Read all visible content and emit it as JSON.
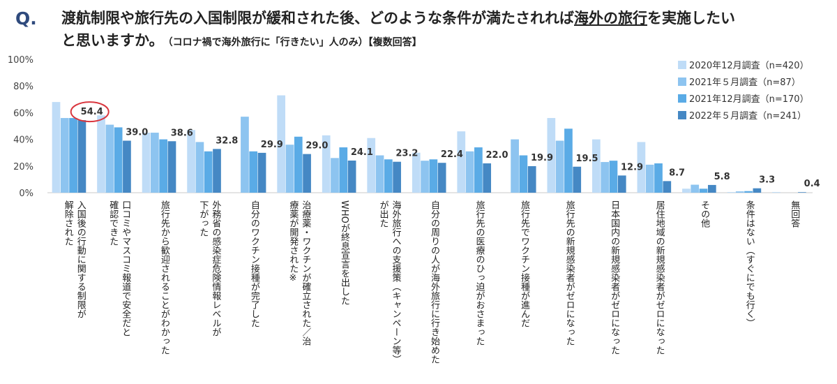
{
  "header": {
    "q_mark": "Q.",
    "title_a": "渡航制限や旅行先の入国制限が緩和された後、どのような条件が満たされれば",
    "title_u": "海外の旅行",
    "title_b": "を実施したい",
    "title_c": "と思いますか。",
    "note": "（コロナ禍で海外旅行に「行きたい」人のみ）【複数回答】"
  },
  "chart_data": {
    "type": "bar",
    "ylim": [
      0,
      100
    ],
    "yticks": [
      "0%",
      "20%",
      "40%",
      "60%",
      "80%",
      "100%"
    ],
    "grid": false,
    "legend_position": "top-right",
    "categories": [
      [
        "入国後の行動に関する制限が",
        "解除された"
      ],
      [
        "口コミやマスコミ報道で安全だと",
        "確認できた"
      ],
      [
        "旅行先から歓迎されることがわかった"
      ],
      [
        "外務省の感染症危険情報レベルが",
        "下がった"
      ],
      [
        "自分のワクチン接種が完了した"
      ],
      [
        "治療薬・ワクチンが確立された／治",
        "療薬が開発された※"
      ],
      [
        "WHOが終息宣言を出した"
      ],
      [
        "海外旅行への支援策（キャンペーン等）",
        "が出た"
      ],
      [
        "自分の周りの人が海外旅行に行き始めた"
      ],
      [
        "旅行先の医療のひっ迫がおさまった"
      ],
      [
        "旅行先でワクチン接種が進んだ"
      ],
      [
        "旅行先の新規感染者がゼロになった"
      ],
      [
        "日本国内の新規感染者がゼロになった"
      ],
      [
        "居住地域の新規感染者がゼロになった"
      ],
      [
        "その他"
      ],
      [
        "条件はない（すぐにでも行く）"
      ],
      [
        "無回答"
      ]
    ],
    "series": [
      {
        "name": "2020年12月調査（n=420）",
        "color": "#bfdcf7",
        "values": [
          68,
          58,
          45,
          47,
          0,
          73,
          43,
          41,
          30,
          46,
          0,
          56,
          40,
          38,
          3,
          0.5,
          0.5
        ]
      },
      {
        "name": "2021年５月調査（n=87）",
        "color": "#8dc4f0",
        "values": [
          56,
          51,
          45,
          38,
          57,
          36,
          26,
          28,
          24,
          31,
          40,
          39,
          23,
          21,
          6,
          1,
          0
        ]
      },
      {
        "name": "2021年12月調査（n=170）",
        "color": "#5aabe6",
        "values": [
          56,
          49,
          40,
          31,
          31,
          42,
          34,
          25,
          25,
          34,
          28,
          48,
          24,
          22,
          3,
          1.2,
          0
        ]
      },
      {
        "name": "2022年５月調査（n=241）",
        "color": "#4588c4",
        "values": [
          54.4,
          39.0,
          38.6,
          32.8,
          29.9,
          29.0,
          24.1,
          23.2,
          22.4,
          22.0,
          19.9,
          19.5,
          12.9,
          8.7,
          5.8,
          3.3,
          0.4
        ]
      }
    ],
    "value_labels": [
      "54.4",
      "39.0",
      "38.6",
      "32.8",
      "29.9",
      "29.0",
      "24.1",
      "23.2",
      "22.4",
      "22.0",
      "19.9",
      "19.5",
      "12.9",
      "8.7",
      "5.8",
      "3.3",
      "0.4"
    ],
    "highlight_category_index": 0,
    "highlight_color": "#d9363e"
  }
}
